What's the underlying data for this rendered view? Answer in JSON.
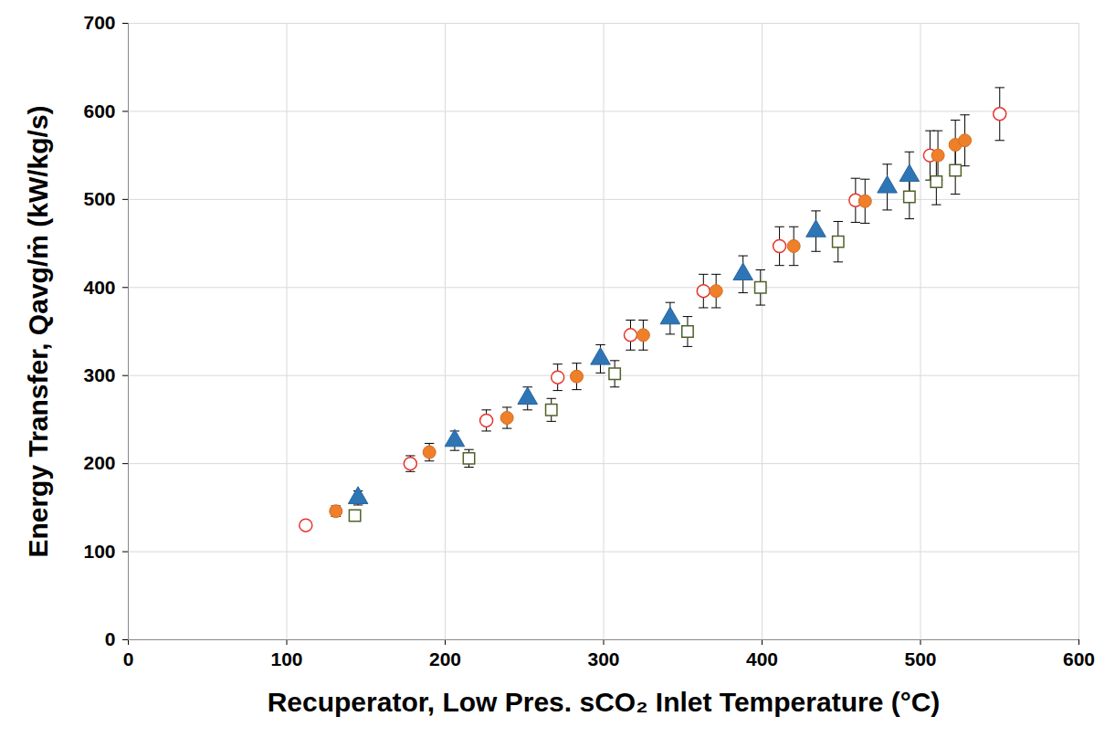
{
  "chart_data": {
    "type": "scatter",
    "xlabel": "Recuperator, Low Pres. sCO₂ Inlet Temperature (°C)",
    "ylabel": "Energy Transfer, Qavg/ṁ (kW/kg/s)",
    "xlim": [
      0,
      600
    ],
    "xticks": [
      0,
      100,
      200,
      300,
      400,
      500,
      600
    ],
    "ylim": [
      0,
      700
    ],
    "yticks": [
      0,
      100,
      200,
      300,
      400,
      500,
      600,
      700
    ],
    "grid": true,
    "series": [
      {
        "color": "#e8322c",
        "marker": "circle-open",
        "x": [
          112,
          178,
          226,
          271,
          317,
          363,
          411,
          459,
          506,
          550
        ],
        "values": [
          130,
          200,
          249,
          298,
          346,
          396,
          447,
          499,
          550,
          597
        ],
        "errors": [
          4,
          9,
          12,
          15,
          17,
          19,
          22,
          25,
          28,
          30
        ]
      },
      {
        "color": "#f07f2a",
        "marker": "circle",
        "x": [
          131,
          190,
          239,
          283,
          325,
          371,
          420,
          465,
          511,
          522,
          528
        ],
        "values": [
          146,
          213,
          252,
          299,
          346,
          396,
          447,
          498,
          550,
          562,
          567
        ],
        "errors": [
          6,
          10,
          12,
          15,
          17,
          19,
          22,
          25,
          28,
          28,
          29
        ]
      },
      {
        "color": "#2e75b6",
        "marker": "triangle",
        "x": [
          145,
          206,
          252,
          298,
          342,
          388,
          434,
          479,
          493
        ],
        "values": [
          161,
          226,
          274,
          319,
          365,
          415,
          464,
          514,
          527
        ],
        "errors": [
          8,
          11,
          13,
          16,
          18,
          21,
          23,
          26,
          27
        ]
      },
      {
        "color": "#4f6228",
        "marker": "square-open",
        "x": [
          143,
          215,
          267,
          307,
          353,
          399,
          448,
          493,
          510,
          522
        ],
        "values": [
          141,
          206,
          261,
          302,
          350,
          400,
          452,
          503,
          520,
          533
        ],
        "errors": [
          5,
          10,
          13,
          15,
          17,
          20,
          23,
          25,
          26,
          27
        ]
      }
    ]
  }
}
